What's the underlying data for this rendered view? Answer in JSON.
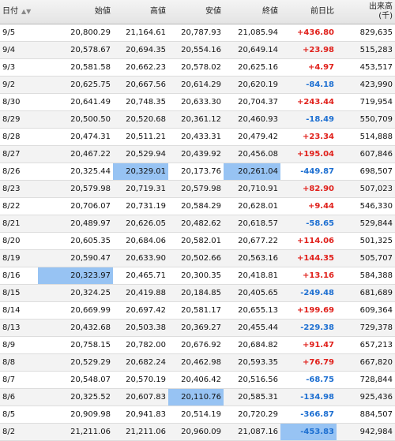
{
  "headers": {
    "date": "日付",
    "open": "始値",
    "high": "高値",
    "low": "安値",
    "close": "終値",
    "change": "前日比",
    "volume_line1": "出来高",
    "volume_line2": "(千)"
  },
  "rows": [
    {
      "date": "9/5",
      "open": "20,800.29",
      "high": "21,164.61",
      "low": "20,787.93",
      "close": "21,085.94",
      "change": "+436.80",
      "volume": "829,635"
    },
    {
      "date": "9/4",
      "open": "20,578.67",
      "high": "20,694.35",
      "low": "20,554.16",
      "close": "20,649.14",
      "change": "+23.98",
      "volume": "515,283"
    },
    {
      "date": "9/3",
      "open": "20,581.58",
      "high": "20,662.23",
      "low": "20,578.02",
      "close": "20,625.16",
      "change": "+4.97",
      "volume": "453,517"
    },
    {
      "date": "9/2",
      "open": "20,625.75",
      "high": "20,667.56",
      "low": "20,614.29",
      "close": "20,620.19",
      "change": "-84.18",
      "volume": "423,990"
    },
    {
      "date": "8/30",
      "open": "20,641.49",
      "high": "20,748.35",
      "low": "20,633.30",
      "close": "20,704.37",
      "change": "+243.44",
      "volume": "719,954"
    },
    {
      "date": "8/29",
      "open": "20,500.50",
      "high": "20,520.68",
      "low": "20,361.12",
      "close": "20,460.93",
      "change": "-18.49",
      "volume": "550,709"
    },
    {
      "date": "8/28",
      "open": "20,474.31",
      "high": "20,511.21",
      "low": "20,433.31",
      "close": "20,479.42",
      "change": "+23.34",
      "volume": "514,888"
    },
    {
      "date": "8/27",
      "open": "20,467.22",
      "high": "20,529.94",
      "low": "20,439.92",
      "close": "20,456.08",
      "change": "+195.04",
      "volume": "607,846"
    },
    {
      "date": "8/26",
      "open": "20,325.44",
      "high": "20,329.01",
      "low": "20,173.76",
      "close": "20,261.04",
      "change": "-449.87",
      "volume": "698,507"
    },
    {
      "date": "8/23",
      "open": "20,579.98",
      "high": "20,719.31",
      "low": "20,579.98",
      "close": "20,710.91",
      "change": "+82.90",
      "volume": "507,023"
    },
    {
      "date": "8/22",
      "open": "20,706.07",
      "high": "20,731.19",
      "low": "20,584.29",
      "close": "20,628.01",
      "change": "+9.44",
      "volume": "546,330"
    },
    {
      "date": "8/21",
      "open": "20,489.97",
      "high": "20,626.05",
      "low": "20,482.62",
      "close": "20,618.57",
      "change": "-58.65",
      "volume": "529,844"
    },
    {
      "date": "8/20",
      "open": "20,605.35",
      "high": "20,684.06",
      "low": "20,582.01",
      "close": "20,677.22",
      "change": "+114.06",
      "volume": "501,325"
    },
    {
      "date": "8/19",
      "open": "20,590.47",
      "high": "20,633.90",
      "low": "20,502.66",
      "close": "20,563.16",
      "change": "+144.35",
      "volume": "505,707"
    },
    {
      "date": "8/16",
      "open": "20,323.97",
      "high": "20,465.71",
      "low": "20,300.35",
      "close": "20,418.81",
      "change": "+13.16",
      "volume": "584,388"
    },
    {
      "date": "8/15",
      "open": "20,324.25",
      "high": "20,419.88",
      "low": "20,184.85",
      "close": "20,405.65",
      "change": "-249.48",
      "volume": "681,689"
    },
    {
      "date": "8/14",
      "open": "20,669.99",
      "high": "20,697.42",
      "low": "20,581.17",
      "close": "20,655.13",
      "change": "+199.69",
      "volume": "609,364"
    },
    {
      "date": "8/13",
      "open": "20,432.68",
      "high": "20,503.38",
      "low": "20,369.27",
      "close": "20,455.44",
      "change": "-229.38",
      "volume": "729,378"
    },
    {
      "date": "8/9",
      "open": "20,758.15",
      "high": "20,782.00",
      "low": "20,676.92",
      "close": "20,684.82",
      "change": "+91.47",
      "volume": "657,213"
    },
    {
      "date": "8/8",
      "open": "20,529.29",
      "high": "20,682.24",
      "low": "20,462.98",
      "close": "20,593.35",
      "change": "+76.79",
      "volume": "667,820"
    },
    {
      "date": "8/7",
      "open": "20,548.07",
      "high": "20,570.19",
      "low": "20,406.42",
      "close": "20,516.56",
      "change": "-68.75",
      "volume": "728,844"
    },
    {
      "date": "8/6",
      "open": "20,325.52",
      "high": "20,607.83",
      "low": "20,110.76",
      "close": "20,585.31",
      "change": "-134.98",
      "volume": "925,436"
    },
    {
      "date": "8/5",
      "open": "20,909.98",
      "high": "20,941.83",
      "low": "20,514.19",
      "close": "20,720.29",
      "change": "-366.87",
      "volume": "884,507"
    },
    {
      "date": "8/2",
      "open": "21,211.06",
      "high": "21,211.06",
      "low": "20,960.09",
      "close": "21,087.16",
      "change": "-453.83",
      "volume": "942,984"
    }
  ],
  "highlights": [
    {
      "row": 8,
      "col": "high"
    },
    {
      "row": 8,
      "col": "close"
    },
    {
      "row": 14,
      "col": "open"
    },
    {
      "row": 21,
      "col": "low"
    },
    {
      "row": 23,
      "col": "change"
    }
  ],
  "colors": {
    "positive": "#e0201b",
    "negative": "#1d6fd1",
    "highlight": "#97c3f3"
  }
}
